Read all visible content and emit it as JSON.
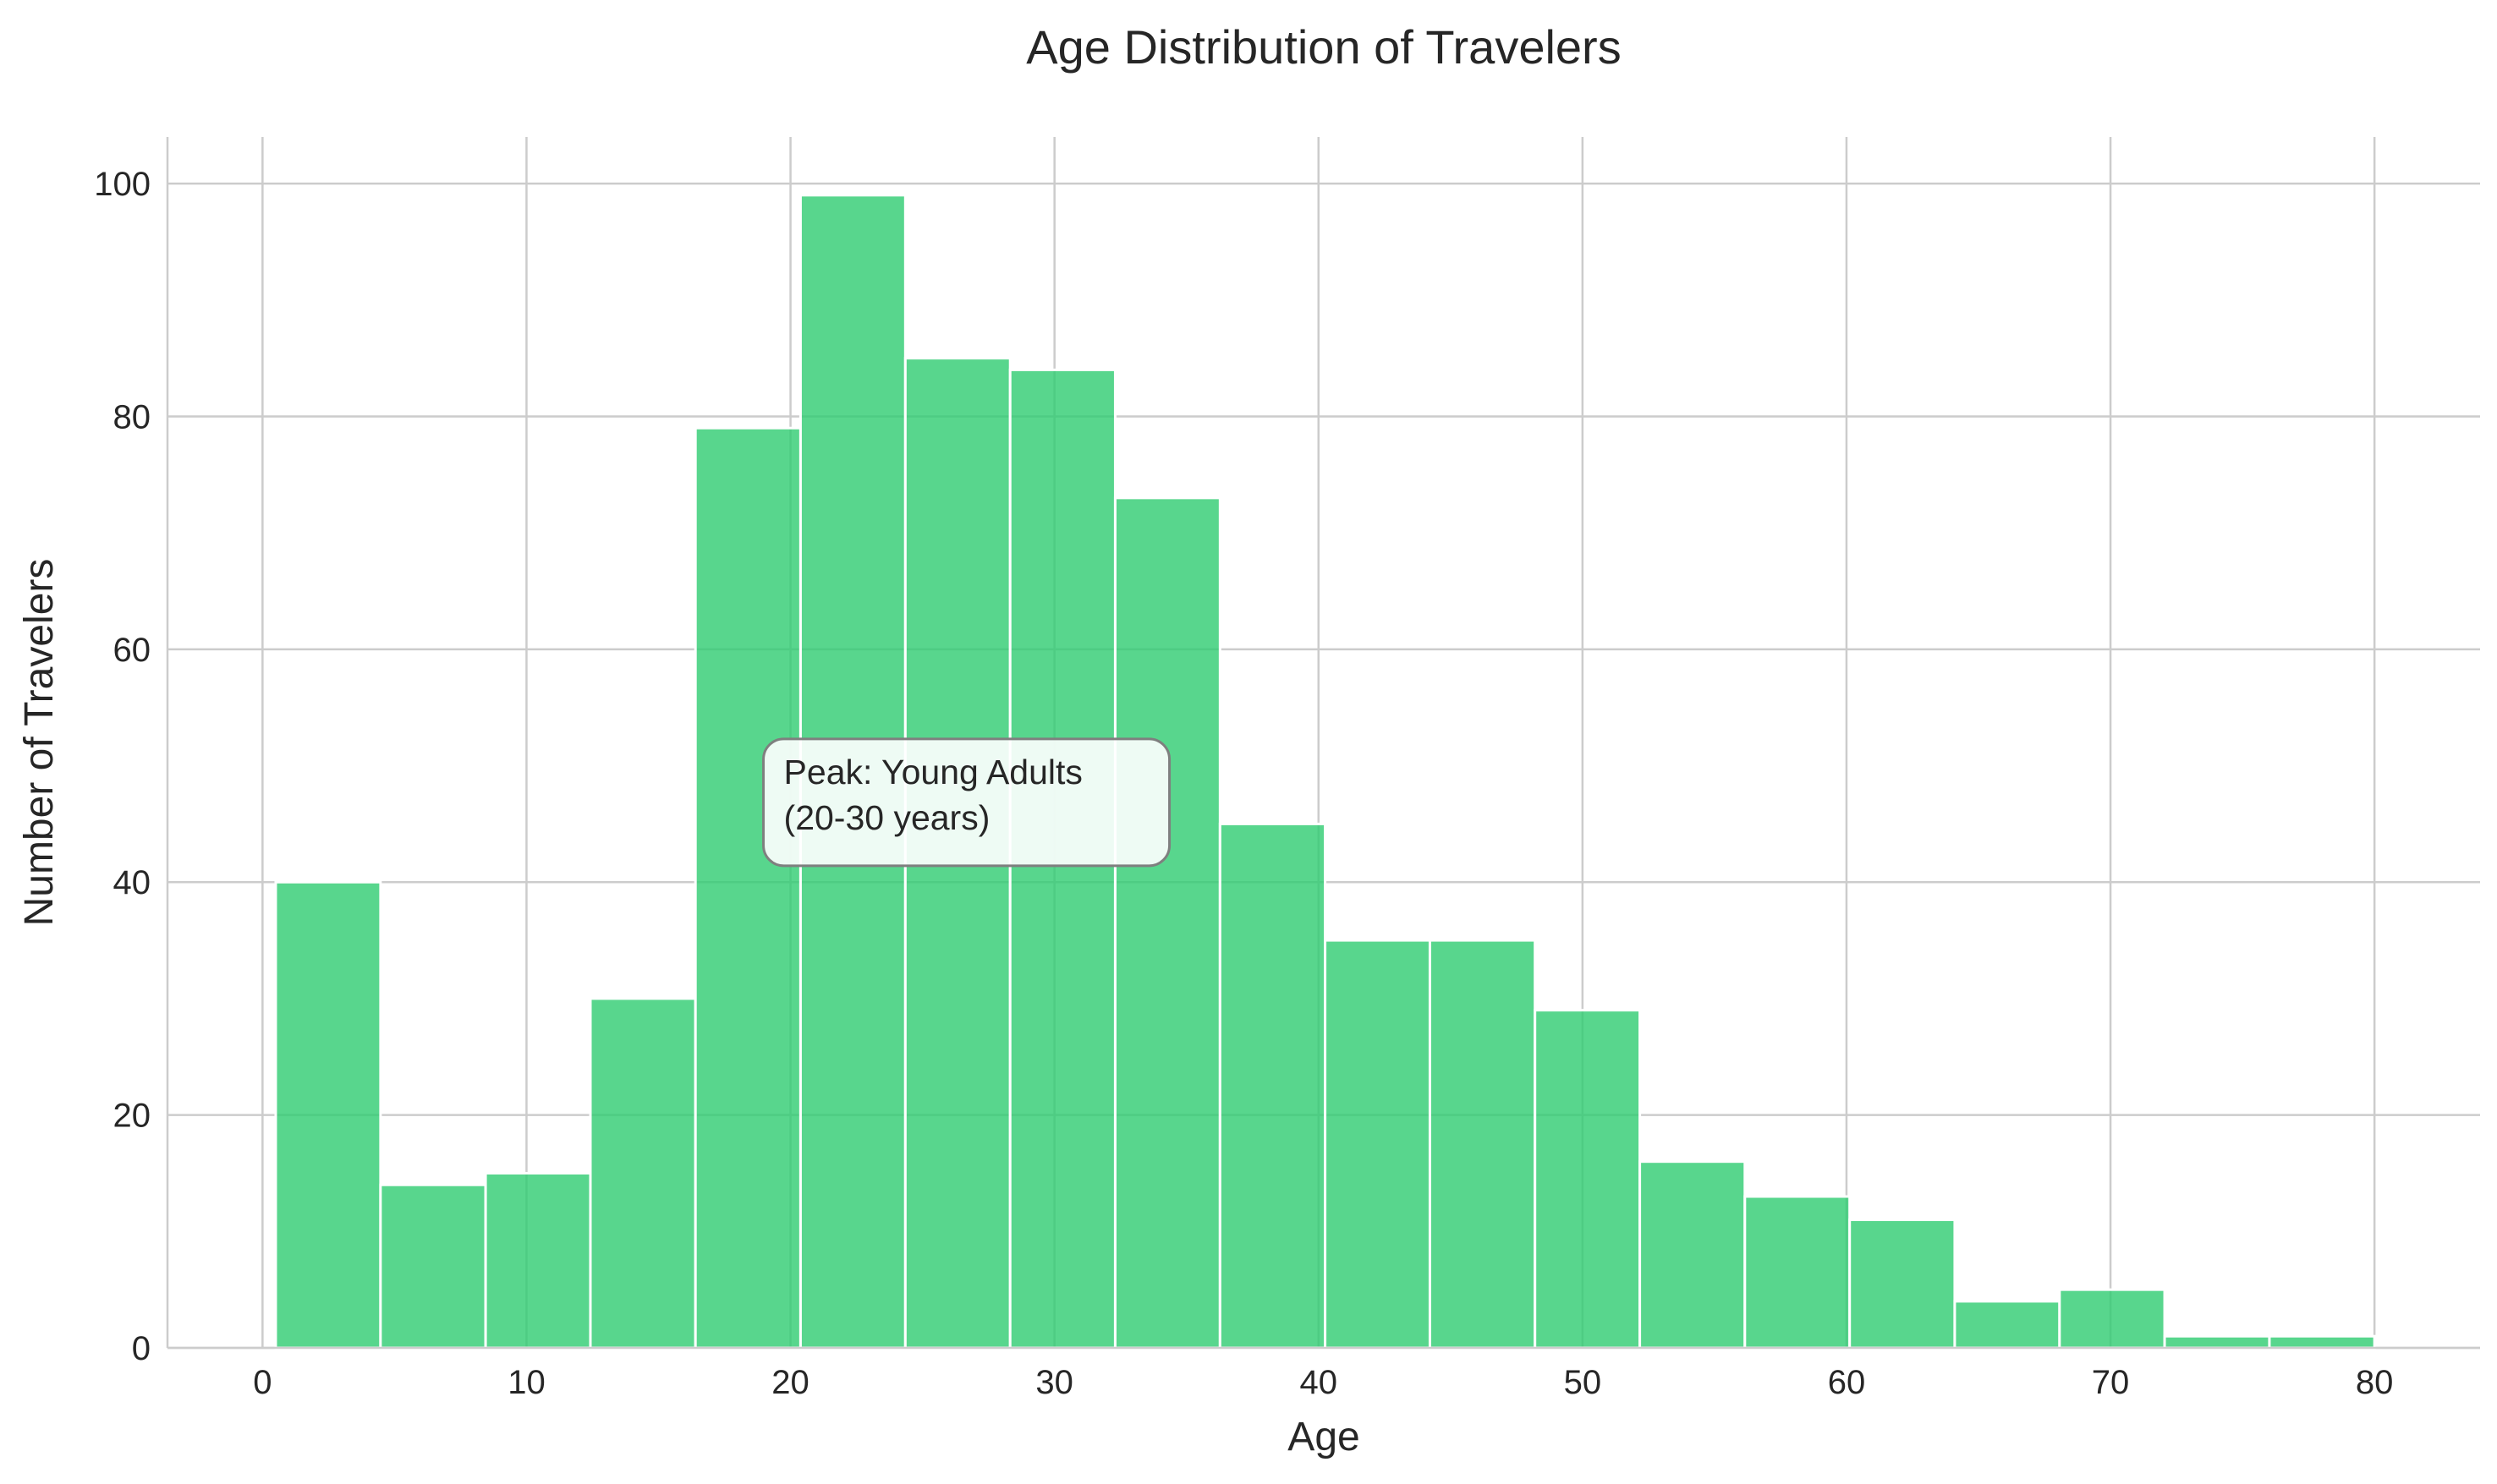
{
  "chart_data": {
    "type": "bar",
    "title": "Age Distribution of Travelers",
    "xlabel": "Age",
    "ylabel": "Number of Travelers",
    "xlim": [
      -3.6,
      84
    ],
    "ylim": [
      0,
      104
    ],
    "xticks": [
      0,
      10,
      20,
      30,
      40,
      50,
      60,
      70,
      80
    ],
    "yticks": [
      0,
      20,
      40,
      60,
      80,
      100
    ],
    "grid": true,
    "bar_color": "#2ecc71",
    "bin_edges": [
      0.5,
      4.47,
      8.45,
      12.42,
      16.4,
      20.38,
      24.35,
      28.32,
      32.3,
      36.27,
      40.25,
      44.22,
      48.2,
      52.17,
      56.15,
      60.12,
      64.1,
      68.07,
      72.05,
      76.02,
      80.0
    ],
    "values": [
      40,
      14,
      15,
      30,
      79,
      99,
      85,
      84,
      73,
      45,
      35,
      35,
      29,
      16,
      13,
      11,
      4,
      5,
      1,
      1
    ],
    "annotation": {
      "lines": [
        "Peak: Young Adults",
        "(20-30 years)"
      ],
      "x": 20,
      "y": 47
    }
  }
}
